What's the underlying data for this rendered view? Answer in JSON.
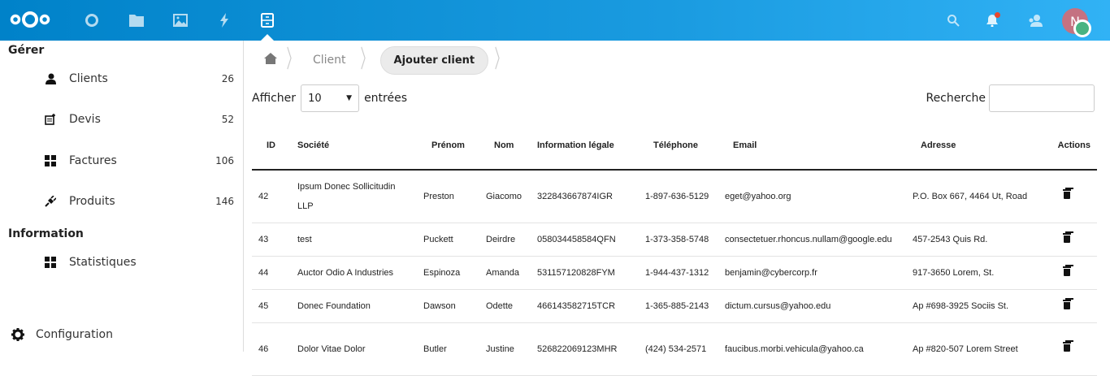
{
  "header": {
    "apps": [
      "dashboard",
      "files",
      "photos",
      "activity",
      "invoicing"
    ],
    "avatar_initial": "N",
    "colors": {
      "header_start": "#0082c9",
      "header_end": "#31b2f5",
      "avatar": "#c47281",
      "status": "#49b382",
      "notification": "#e9462b"
    }
  },
  "sidebar": {
    "section_manage": "Gérer",
    "items": [
      {
        "label": "Clients",
        "count": "26",
        "icon": "users-icon"
      },
      {
        "label": "Devis",
        "count": "52",
        "icon": "quote-icon"
      },
      {
        "label": "Factures",
        "count": "106",
        "icon": "grid-icon"
      },
      {
        "label": "Produits",
        "count": "146",
        "icon": "plug-icon"
      }
    ],
    "section_info": "Information",
    "stats": {
      "label": "Statistiques"
    },
    "settings": {
      "label": "Configuration"
    }
  },
  "breadcrumb": {
    "items": [
      "Client"
    ],
    "current": "Ajouter client"
  },
  "table_controls": {
    "show_label": "Afficher",
    "page_size": "10",
    "entries_label": "entrées",
    "search_label": "Recherche",
    "search_value": ""
  },
  "table": {
    "headers": [
      "ID",
      "Société",
      "Prénom",
      "Nom",
      "Information légale",
      "Téléphone",
      "Email",
      "Adresse",
      "Actions"
    ],
    "rows": [
      [
        "42",
        "Ipsum Donec Sollicitudin LLP",
        "Preston",
        "Giacomo",
        "322843667874IGR",
        "1-897-636-5129",
        "eget@yahoo.org",
        "P.O. Box 667, 4464 Ut, Road"
      ],
      [
        "43",
        "test",
        "Puckett",
        "Deirdre",
        "058034458584QFN",
        "1-373-358-5748",
        "consectetuer.rhoncus.nullam@google.edu",
        "457-2543 Quis Rd."
      ],
      [
        "44",
        "Auctor Odio A Industries",
        "Espinoza",
        "Amanda",
        "531157120828FYM",
        "1-944-437-1312",
        "benjamin@cybercorp.fr",
        "917-3650 Lorem, St."
      ],
      [
        "45",
        "Donec Foundation",
        "Dawson",
        "Odette",
        "466143582715TCR",
        "1-365-885-2143",
        "dictum.cursus@yahoo.edu",
        "Ap #698-3925 Sociis St."
      ],
      [
        "46",
        "Dolor Vitae Dolor",
        "Butler",
        "Justine",
        "526822069123MHR",
        "(424) 534-2571",
        "faucibus.morbi.vehicula@yahoo.ca",
        "Ap #820-507 Lorem Street"
      ]
    ]
  }
}
